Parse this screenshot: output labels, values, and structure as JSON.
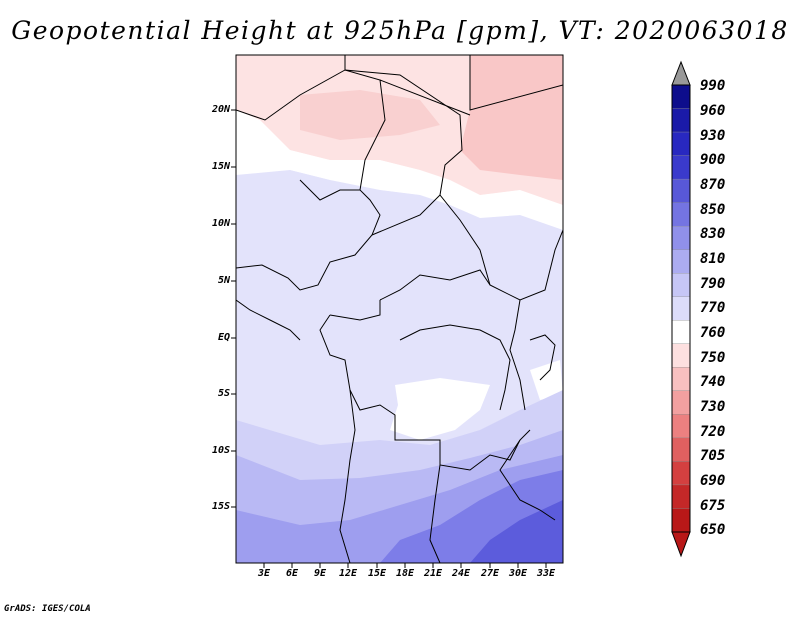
{
  "title": "Geopotential Height at 925hPa [gpm], VT: 2020063018",
  "map": {
    "lat_labels": [
      "20N",
      "15N",
      "10N",
      "5N",
      "EQ",
      "5S",
      "10S",
      "15S"
    ],
    "lon_labels": [
      "3E",
      "6E",
      "9E",
      "12E",
      "15E",
      "18E",
      "21E",
      "24E",
      "27E",
      "30E",
      "33E"
    ],
    "region_colors": {
      "red_high": "#f9c7c7",
      "red_light": "#fde3e3",
      "white": "#ffffff",
      "blue_770": "#e3e3fb",
      "blue_790": "#d1d1f8",
      "blue_810": "#b9b9f4",
      "blue_830": "#9e9eef",
      "blue_850": "#7d7de8",
      "blue_870": "#5c5cdc"
    }
  },
  "colorbar": {
    "levels": [
      "990",
      "960",
      "930",
      "900",
      "870",
      "850",
      "830",
      "810",
      "790",
      "770",
      "760",
      "750",
      "740",
      "730",
      "720",
      "705",
      "690",
      "675",
      "650"
    ],
    "colors": [
      "#0d0d8c",
      "#1a1aa8",
      "#2828c0",
      "#3a3acc",
      "#5858d8",
      "#7474e2",
      "#9090ea",
      "#acacf1",
      "#c6c6f6",
      "#dcdcfa",
      "#ffffff",
      "#fde0e0",
      "#f8c0c0",
      "#f2a0a0",
      "#ec8080",
      "#e06060",
      "#d44040",
      "#c42828",
      "#b81818"
    ]
  },
  "credit": "GrADS: IGES/COLA"
}
